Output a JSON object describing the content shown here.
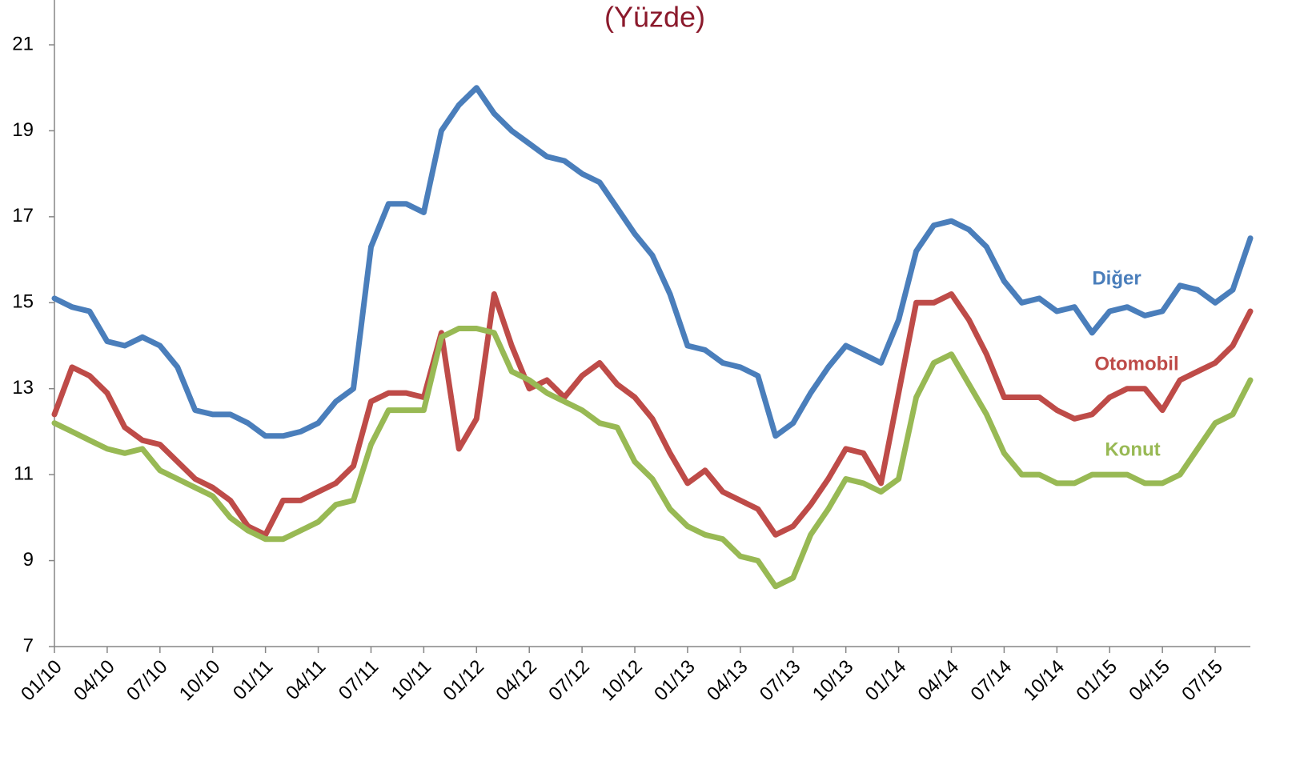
{
  "chart_data": {
    "type": "line",
    "title": "(Yüzde)",
    "categories": [
      "01/10",
      null,
      null,
      "04/10",
      null,
      null,
      "07/10",
      null,
      null,
      "10/10",
      null,
      null,
      "01/11",
      null,
      null,
      "04/11",
      null,
      null,
      "07/11",
      null,
      null,
      "10/11",
      null,
      null,
      "01/12",
      null,
      null,
      "04/12",
      null,
      null,
      "07/12",
      null,
      null,
      "10/12",
      null,
      null,
      "01/13",
      null,
      null,
      "04/13",
      null,
      null,
      "07/13",
      null,
      null,
      "10/13",
      null,
      null,
      "01/14",
      null,
      null,
      "04/14",
      null,
      null,
      "07/14",
      null,
      null,
      "10/14",
      null,
      null,
      "01/15",
      null,
      null,
      "04/15",
      null,
      null,
      "07/15",
      null,
      null
    ],
    "series": [
      {
        "name": "Diğer",
        "color": "#4a7ebb",
        "values": [
          15.1,
          14.9,
          14.8,
          14.1,
          14.0,
          14.2,
          14.0,
          13.5,
          12.5,
          12.4,
          12.4,
          12.2,
          11.9,
          11.9,
          12.0,
          12.2,
          12.7,
          13.0,
          16.3,
          17.3,
          17.3,
          17.1,
          19.0,
          19.6,
          20.0,
          19.4,
          19.0,
          18.7,
          18.4,
          18.3,
          18.0,
          17.8,
          17.2,
          16.6,
          16.1,
          15.2,
          14.0,
          13.9,
          13.6,
          13.5,
          13.3,
          11.9,
          12.2,
          12.9,
          13.5,
          14.0,
          13.8,
          13.6,
          14.6,
          16.2,
          16.8,
          16.9,
          16.7,
          16.3,
          15.5,
          15.0,
          15.1,
          14.8,
          14.9,
          14.3,
          14.8,
          14.9,
          14.7,
          14.8,
          15.4,
          15.3,
          15.0,
          15.3,
          16.5
        ]
      },
      {
        "name": "Otomobil",
        "color": "#be4b48",
        "values": [
          12.4,
          13.5,
          13.3,
          12.9,
          12.1,
          11.8,
          11.7,
          11.3,
          10.9,
          10.7,
          10.4,
          9.8,
          9.6,
          10.4,
          10.4,
          10.6,
          10.8,
          11.2,
          12.7,
          12.9,
          12.9,
          12.8,
          14.3,
          11.6,
          12.3,
          15.2,
          14.0,
          13.0,
          13.2,
          12.8,
          13.3,
          13.6,
          13.1,
          12.8,
          12.3,
          11.5,
          10.8,
          11.1,
          10.6,
          10.4,
          10.2,
          9.6,
          9.8,
          10.3,
          10.9,
          11.6,
          11.5,
          10.8,
          12.9,
          15.0,
          15.0,
          15.2,
          14.6,
          13.8,
          12.8,
          12.8,
          12.8,
          12.5,
          12.3,
          12.4,
          12.8,
          13.0,
          13.0,
          12.5,
          13.2,
          13.4,
          13.6,
          14.0,
          14.8
        ]
      },
      {
        "name": "Konut",
        "color": "#98b954",
        "values": [
          12.2,
          12.0,
          11.8,
          11.6,
          11.5,
          11.6,
          11.1,
          10.9,
          10.7,
          10.5,
          10.0,
          9.7,
          9.5,
          9.5,
          9.7,
          9.9,
          10.3,
          10.4,
          11.7,
          12.5,
          12.5,
          12.5,
          14.2,
          14.4,
          14.4,
          14.3,
          13.4,
          13.2,
          12.9,
          12.7,
          12.5,
          12.2,
          12.1,
          11.3,
          10.9,
          10.2,
          9.8,
          9.6,
          9.5,
          9.1,
          9.0,
          8.4,
          8.6,
          9.6,
          10.2,
          10.9,
          10.8,
          10.6,
          10.9,
          12.8,
          13.6,
          13.8,
          13.1,
          12.4,
          11.5,
          11.0,
          11.0,
          10.8,
          10.8,
          11.0,
          11.0,
          11.0,
          10.8,
          10.8,
          11.0,
          11.6,
          12.2,
          12.4,
          13.2
        ]
      }
    ],
    "ylim": [
      7,
      21
    ],
    "yticks": [
      7,
      9,
      11,
      13,
      15,
      17,
      19,
      21
    ],
    "grid": false
  }
}
